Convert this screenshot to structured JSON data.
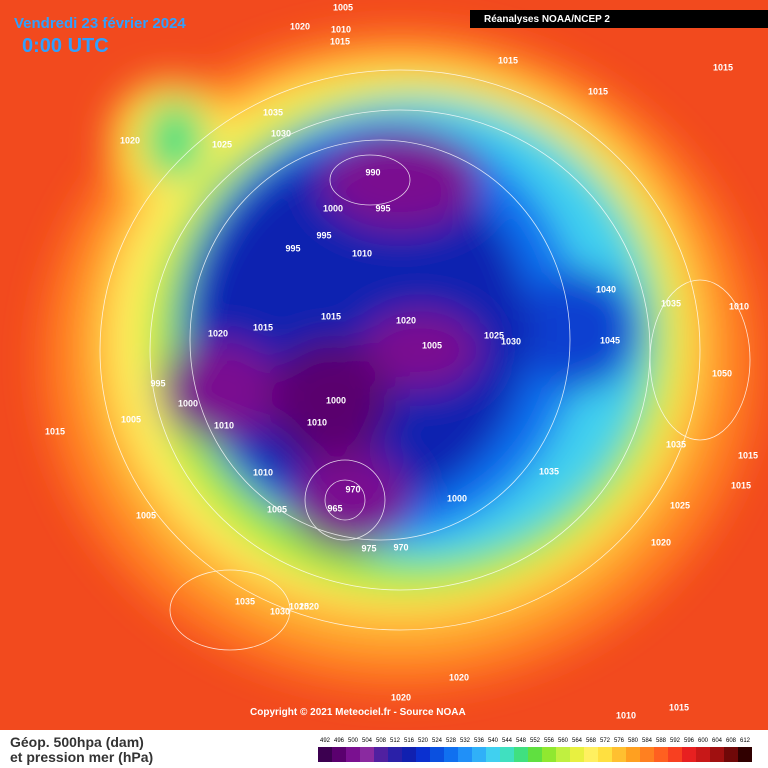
{
  "header": {
    "date": "Vendredi 23 février 2024",
    "time": "0:00 UTC",
    "source": "Réanalyses NOAA/NCEP 2"
  },
  "footer": {
    "copyright": "Copyright © 2021 Meteociel.fr - Source NOAA",
    "legend_line1": "Géop. 500hpa (dam)",
    "legend_line2": "et pression mer (hPa)"
  },
  "scale": {
    "ticks": [
      492,
      496,
      500,
      504,
      508,
      512,
      516,
      520,
      524,
      528,
      532,
      536,
      540,
      544,
      548,
      552,
      556,
      560,
      564,
      568,
      572,
      576,
      580,
      584,
      588,
      592,
      596,
      600,
      604,
      608,
      612
    ],
    "colors": [
      "#3c0050",
      "#5a006e",
      "#7a1090",
      "#8a2aa0",
      "#5020a0",
      "#2a20a8",
      "#1020b0",
      "#0a30d0",
      "#0a50e0",
      "#1070f0",
      "#2090f8",
      "#30b0f8",
      "#40d0f0",
      "#40e0c0",
      "#40e080",
      "#60e040",
      "#90e830",
      "#c0f040",
      "#e8f040",
      "#fff060",
      "#ffe040",
      "#ffc030",
      "#ffa020",
      "#ff8020",
      "#ff6020",
      "#f84020",
      "#e82020",
      "#c81818",
      "#a01010",
      "#700808",
      "#300000"
    ]
  },
  "isobar_labels": [
    1005,
    1020,
    1010,
    1015,
    1015,
    1015,
    1015,
    1035,
    1030,
    1020,
    1025,
    990,
    1000,
    995,
    995,
    995,
    1010,
    1040,
    1035,
    1010,
    1020,
    1015,
    1015,
    1020,
    1025,
    1030,
    1005,
    1045,
    1050,
    995,
    1000,
    1000,
    1005,
    1010,
    1010,
    1015,
    1035,
    1015,
    1015,
    1035,
    1010,
    970,
    1000,
    965,
    1005,
    1025,
    1005,
    975,
    970,
    1020,
    1035,
    1030,
    1025,
    1020,
    1020,
    1020,
    1015,
    1010
  ]
}
